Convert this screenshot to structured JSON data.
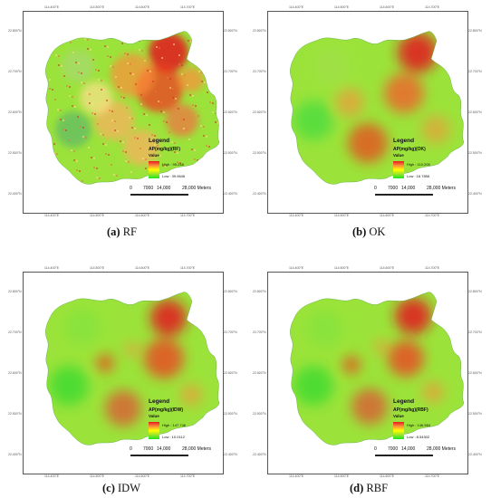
{
  "panels": [
    {
      "caption_letter": "(a)",
      "caption_label": "RF",
      "legend": {
        "title": "Legend",
        "field": "AP(mg/kg)(RF)",
        "value_label": "Value",
        "high": "High : 95.248",
        "low": "Low : 39.9646"
      },
      "ticks_top": [
        "114.400°E",
        "114.500°E",
        "114.600°E",
        "114.700°E"
      ],
      "ticks_left": [
        "22.800°N",
        "22.700°N",
        "22.600°N",
        "22.500°N",
        "22.400°N"
      ],
      "ticks_bottom": [
        "114.400°E",
        "114.500°E",
        "114.600°E",
        "114.700°E"
      ],
      "ticks_right": [
        "22.800°N",
        "22.700°N",
        "22.600°N",
        "22.500°N",
        "22.400°N"
      ],
      "scale": {
        "zero": "0",
        "mid": "7000",
        "mid2": "14,000",
        "max": "28,000 Meters"
      }
    },
    {
      "caption_letter": "(b)",
      "caption_label": "OK",
      "legend": {
        "title": "Legend",
        "field": "AP(mg/kg)(OK)",
        "value_label": "Value",
        "high": "High : 110.205",
        "low": "Low : 16.7856"
      },
      "ticks_top": [
        "114.400°E",
        "114.500°E",
        "114.600°E",
        "114.700°E"
      ],
      "ticks_left": [
        "22.800°N",
        "22.700°N",
        "22.600°N",
        "22.500°N",
        "22.400°N"
      ],
      "ticks_bottom": [
        "114.400°E",
        "114.500°E",
        "114.600°E",
        "114.700°E"
      ],
      "ticks_right": [
        "22.800°N",
        "22.700°N",
        "22.600°N",
        "22.500°N",
        "22.400°N"
      ],
      "scale": {
        "zero": "0",
        "mid": "7000",
        "mid2": "14,000",
        "max": "28,000 Meters"
      }
    },
    {
      "caption_letter": "(c)",
      "caption_label": "IDW",
      "legend": {
        "title": "Legend",
        "field": "AP(mg/kg)(IDW)",
        "value_label": "Value",
        "high": "High : 147.746",
        "low": "Low : 10.0112"
      },
      "ticks_top": [
        "114.400°E",
        "114.500°E",
        "114.600°E",
        "114.700°E"
      ],
      "ticks_left": [
        "22.800°N",
        "22.700°N",
        "22.600°N",
        "22.500°N",
        "22.400°N"
      ],
      "ticks_bottom": [
        "114.400°E",
        "114.500°E",
        "114.600°E",
        "114.700°E"
      ],
      "ticks_right": [
        "22.800°N",
        "22.700°N",
        "22.600°N",
        "22.500°N",
        "22.400°N"
      ],
      "scale": {
        "zero": "0",
        "mid": "7000",
        "mid2": "14,000",
        "max": "28,000 Meters"
      }
    },
    {
      "caption_letter": "(d)",
      "caption_label": "RBF",
      "legend": {
        "title": "Legend",
        "field": "AP(mg/kg)(RBF)",
        "value_label": "Value",
        "high": "High : 146.564",
        "low": "Low : 8.54302"
      },
      "ticks_top": [
        "114.400°E",
        "114.500°E",
        "114.600°E",
        "114.700°E"
      ],
      "ticks_left": [
        "22.800°N",
        "22.700°N",
        "22.600°N",
        "22.500°N",
        "22.400°N"
      ],
      "ticks_bottom": [
        "114.400°E",
        "114.500°E",
        "114.600°E",
        "114.700°E"
      ],
      "ticks_right": [
        "22.800°N",
        "22.700°N",
        "22.600°N",
        "22.500°N",
        "22.400°N"
      ],
      "scale": {
        "zero": "0",
        "mid": "7000",
        "mid2": "14,000",
        "max": "28,000 Meters"
      }
    }
  ],
  "colors": {
    "high": "#e31a1c",
    "mid": "#ffff00",
    "low": "#1be61b"
  }
}
